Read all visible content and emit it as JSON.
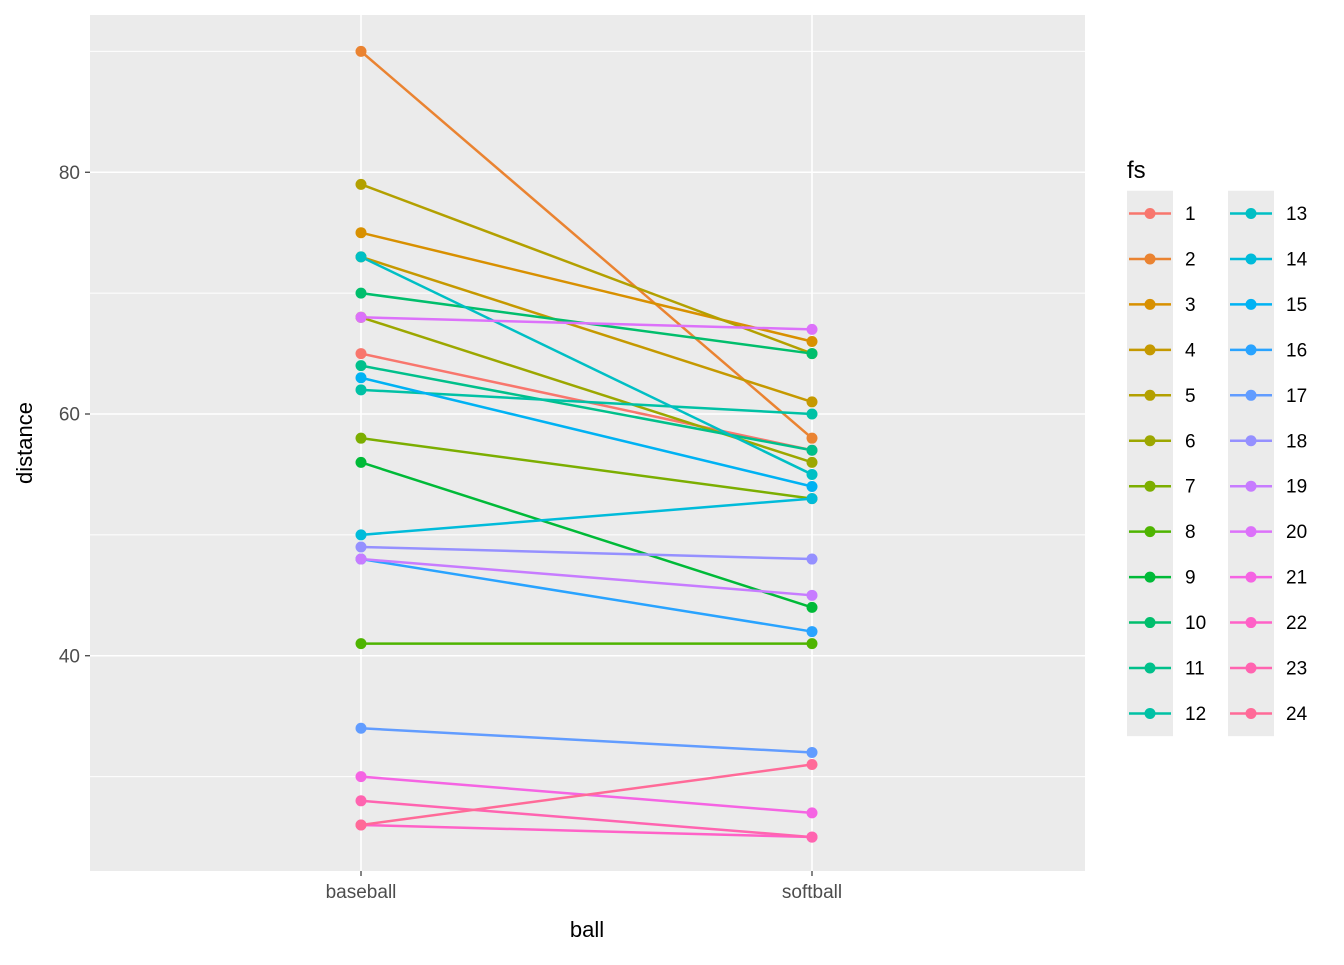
{
  "figure": {
    "background": "#FFFFFF"
  },
  "panel": {
    "background": "#EBEBEB",
    "grid_color": "#FFFFFF",
    "tick_color": "#333333",
    "axis_text_color": "#4D4D4D",
    "title_color": "#000000"
  },
  "axes": {
    "x_title": "ball",
    "y_title": "distance",
    "x_tick_labels": [
      "baseball",
      "softball"
    ],
    "y_tick_labels": [
      "40",
      "60",
      "80"
    ]
  },
  "legend": {
    "title": "fs",
    "key_background": "#EBEBEB",
    "column1_labels": [
      "1",
      "2",
      "3",
      "4",
      "5",
      "6",
      "7",
      "8",
      "9",
      "10",
      "11",
      "12"
    ],
    "column2_labels": [
      "13",
      "14",
      "15",
      "16",
      "17",
      "18",
      "19",
      "20",
      "21",
      "22",
      "23",
      "24"
    ]
  },
  "chart_data": {
    "type": "line",
    "title": "",
    "xlabel": "ball",
    "ylabel": "distance",
    "categories": [
      "baseball",
      "softball"
    ],
    "y_axis": {
      "major_ticks": [
        40,
        60,
        80
      ],
      "minor_gridlines": [
        30,
        50,
        70,
        90
      ],
      "range": [
        22.2,
        93.0
      ]
    },
    "legend_title": "fs",
    "legend_position": "right",
    "grid": true,
    "series": [
      {
        "name": "1",
        "color": "#F8766D",
        "values": [
          65,
          57
        ]
      },
      {
        "name": "2",
        "color": "#EA8331",
        "values": [
          90,
          58
        ]
      },
      {
        "name": "3",
        "color": "#D89000",
        "values": [
          75,
          66
        ]
      },
      {
        "name": "4",
        "color": "#C59900",
        "values": [
          73,
          61
        ]
      },
      {
        "name": "5",
        "color": "#B3A000",
        "values": [
          79,
          65
        ]
      },
      {
        "name": "6",
        "color": "#9CA700",
        "values": [
          68,
          56
        ]
      },
      {
        "name": "7",
        "color": "#7CAE00",
        "values": [
          58,
          53
        ]
      },
      {
        "name": "8",
        "color": "#4EB400",
        "values": [
          41,
          41
        ]
      },
      {
        "name": "9",
        "color": "#00BA38",
        "values": [
          56,
          44
        ]
      },
      {
        "name": "10",
        "color": "#00BE6C",
        "values": [
          70,
          65
        ]
      },
      {
        "name": "11",
        "color": "#00C08B",
        "values": [
          64,
          57
        ]
      },
      {
        "name": "12",
        "color": "#00C1A5",
        "values": [
          62,
          60
        ]
      },
      {
        "name": "13",
        "color": "#00BFC4",
        "values": [
          73,
          55
        ]
      },
      {
        "name": "14",
        "color": "#00BBDA",
        "values": [
          50,
          53
        ]
      },
      {
        "name": "15",
        "color": "#00B2F3",
        "values": [
          63,
          54
        ]
      },
      {
        "name": "16",
        "color": "#29A3FF",
        "values": [
          48,
          42
        ]
      },
      {
        "name": "17",
        "color": "#619CFF",
        "values": [
          34,
          32
        ]
      },
      {
        "name": "18",
        "color": "#9590FF",
        "values": [
          49,
          48
        ]
      },
      {
        "name": "19",
        "color": "#C77CFF",
        "values": [
          48,
          45
        ]
      },
      {
        "name": "20",
        "color": "#DC71FA",
        "values": [
          68,
          67
        ]
      },
      {
        "name": "21",
        "color": "#F564E3",
        "values": [
          30,
          27
        ]
      },
      {
        "name": "22",
        "color": "#FF61C7",
        "values": [
          26,
          25
        ]
      },
      {
        "name": "23",
        "color": "#FF64B0",
        "values": [
          28,
          25
        ]
      },
      {
        "name": "24",
        "color": "#FF6A98",
        "values": [
          26,
          31
        ]
      }
    ]
  }
}
